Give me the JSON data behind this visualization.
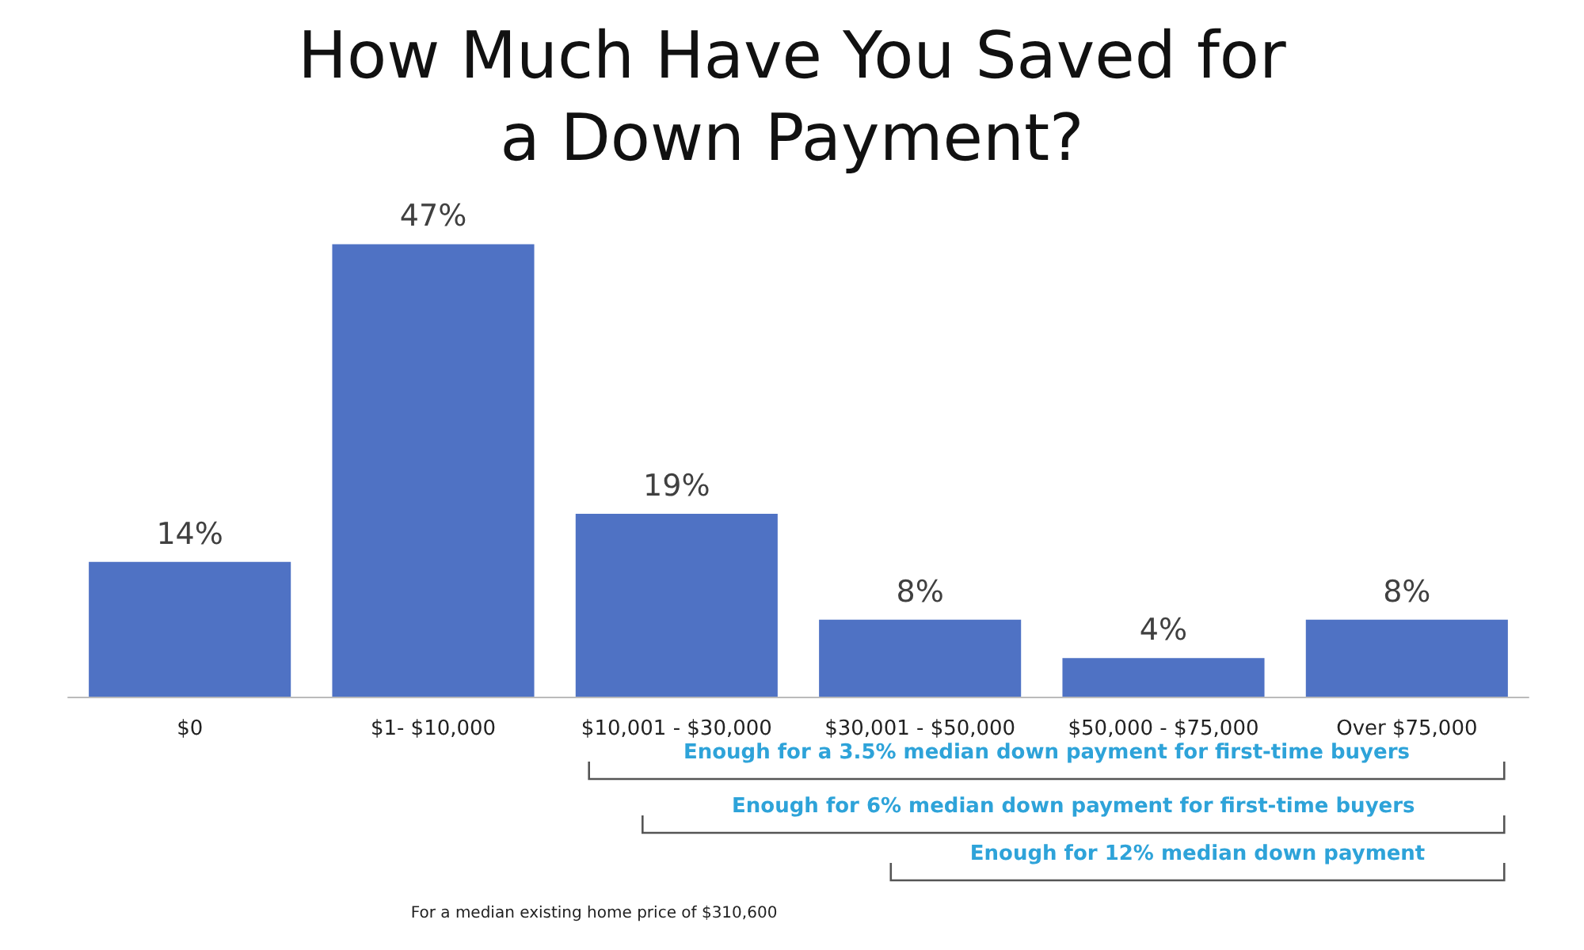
{
  "chart_data": {
    "type": "bar",
    "title": "How Much Have You Saved for\na Down Payment?",
    "categories": [
      "$0",
      "$1- $10,000",
      "$10,001 - $30,000",
      "$30,001 - $50,000",
      "$50,000 - $75,000",
      "Over $75,000"
    ],
    "values": [
      14,
      47,
      19,
      8,
      4,
      8
    ],
    "value_labels": [
      "14%",
      "47%",
      "19%",
      "8%",
      "4%",
      "8%"
    ],
    "color": "#4f72c4",
    "annotations": [
      "Enough for a 3.5% median down payment for first-time buyers",
      "Enough for 6% median down payment for first-time buyers",
      "Enough for 12% median down payment",
      "For a median existing home price of $310,600"
    ]
  }
}
